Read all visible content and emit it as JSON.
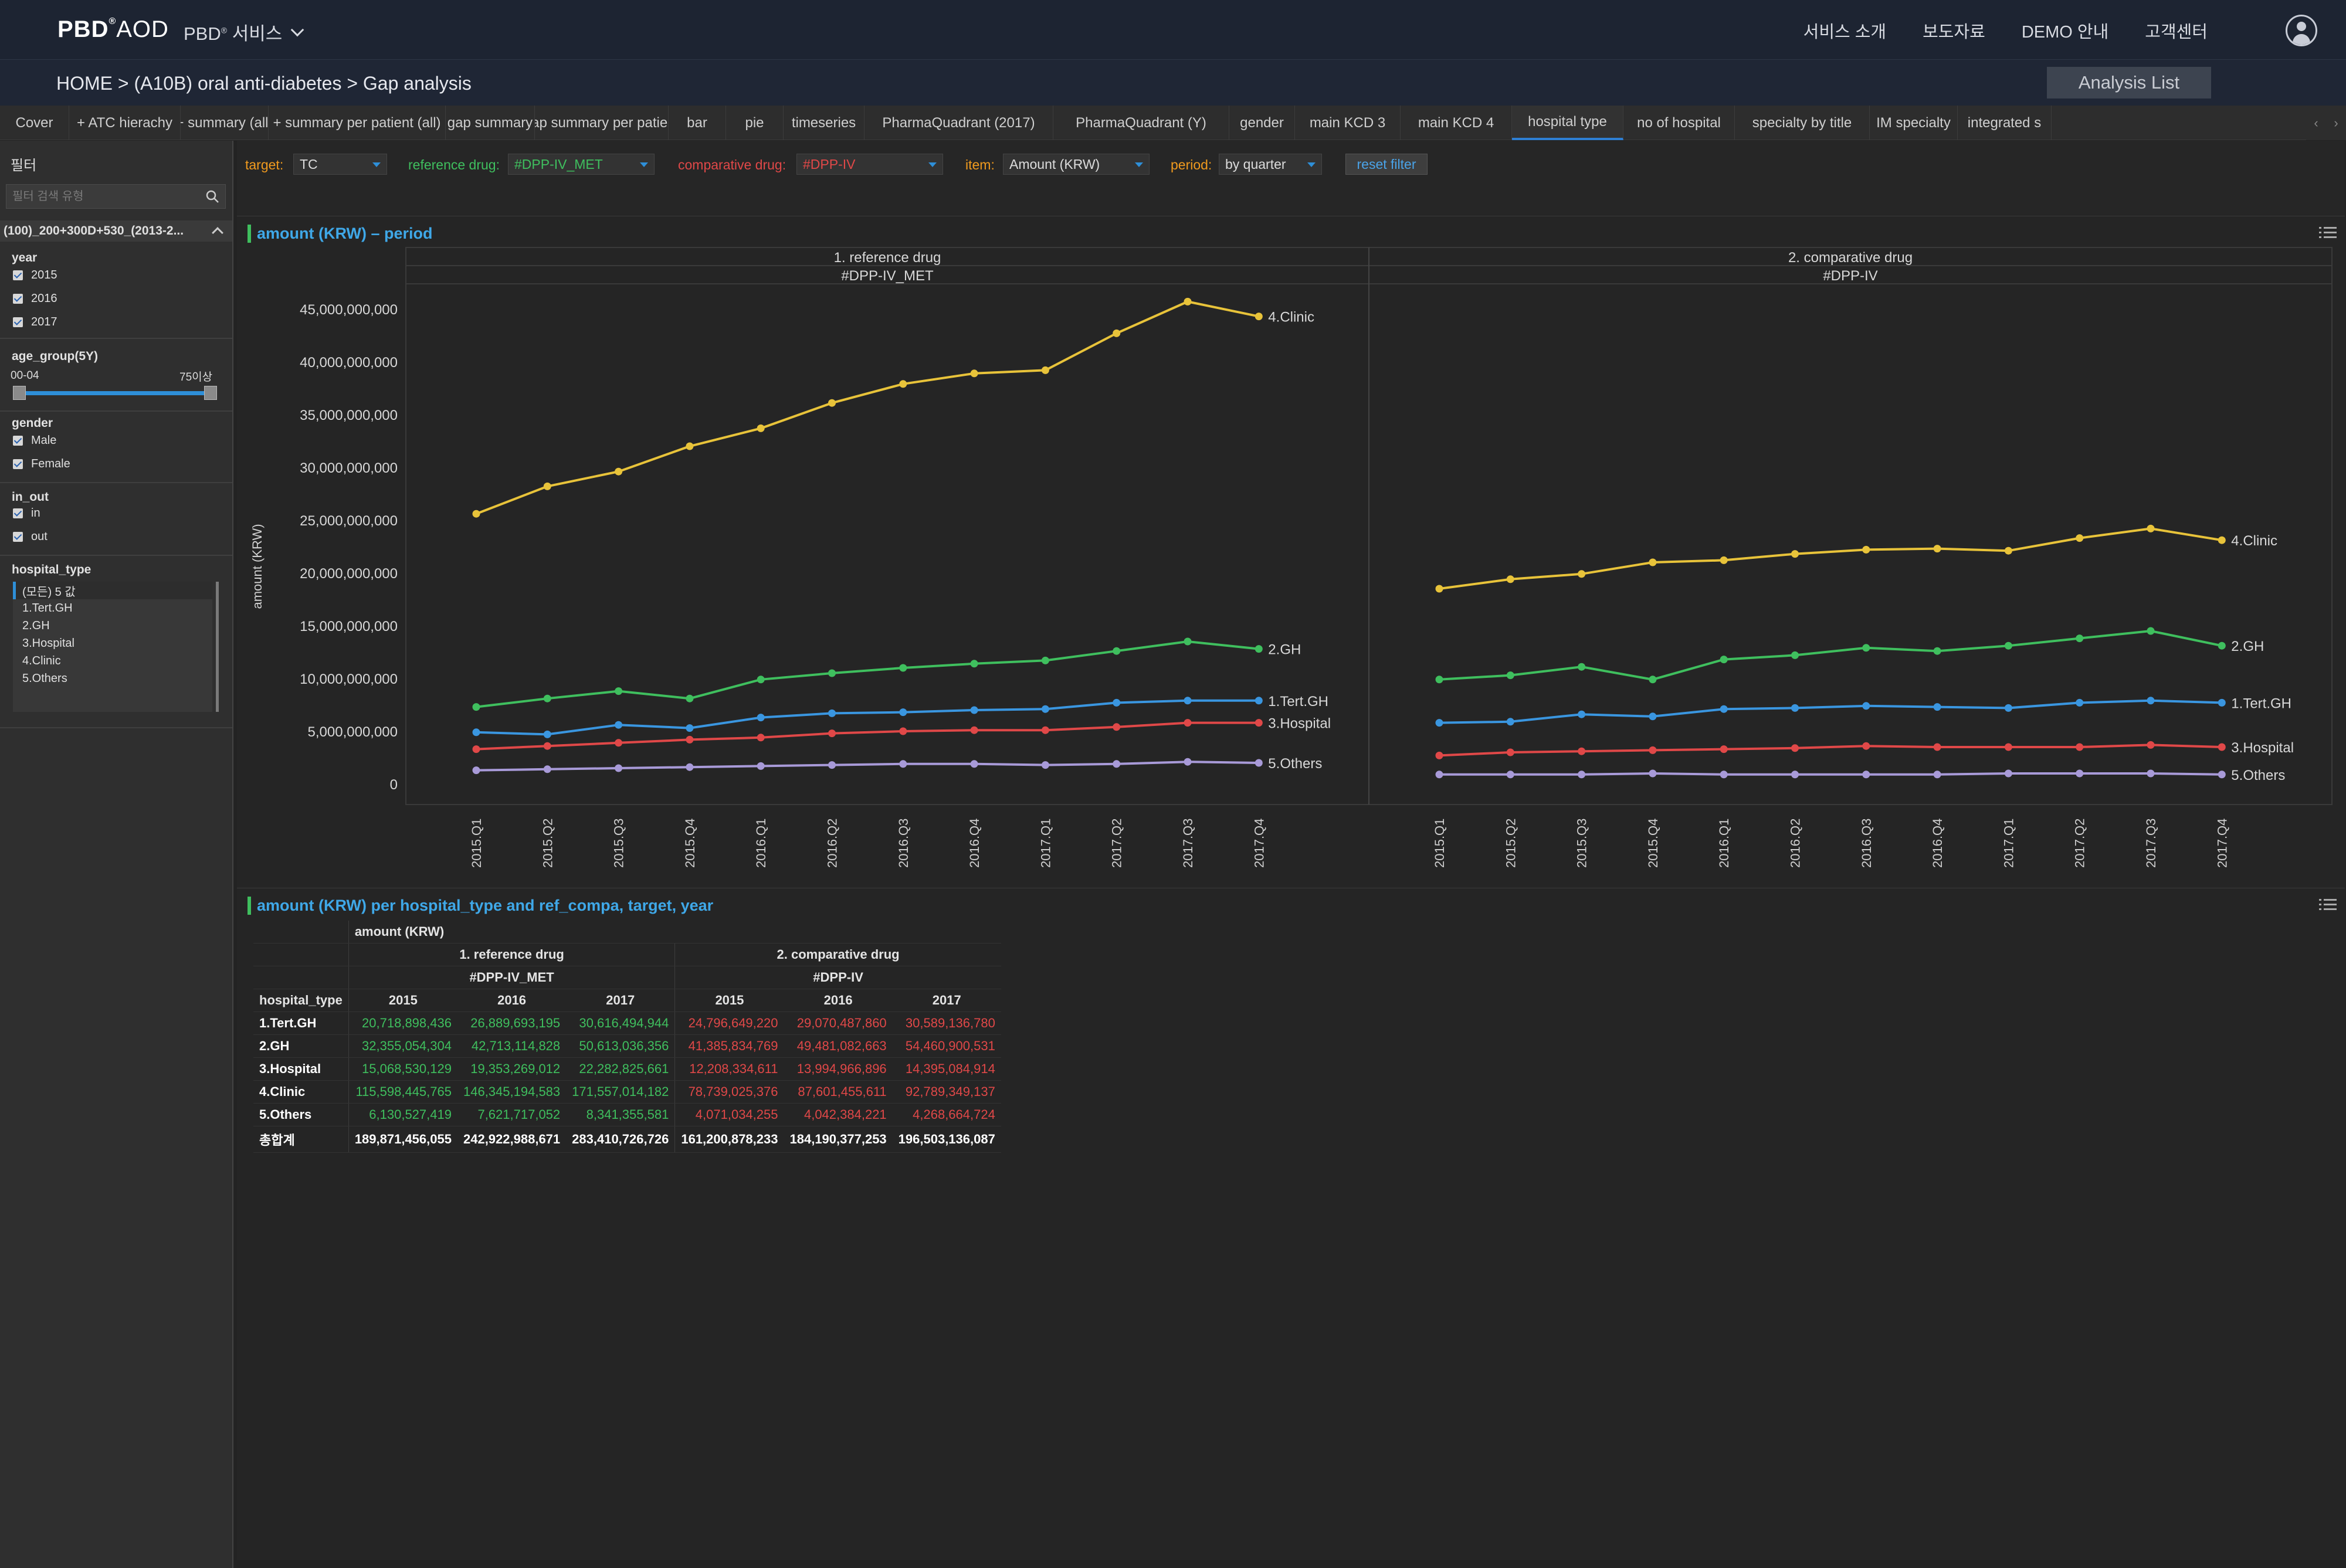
{
  "header": {
    "logo": "PBD",
    "logo_sup": "®",
    "logo_suffix": "AOD",
    "service_menu": "PBD",
    "service_sup": "®",
    "service_suffix": "서비스",
    "nav": [
      "서비스 소개",
      "보도자료",
      "DEMO 안내",
      "고객센터"
    ]
  },
  "breadcrumb": "HOME > (A10B) oral anti-diabetes > Gap analysis",
  "analysis_list": "Analysis List",
  "tabs": [
    {
      "label": "Cover",
      "active": false
    },
    {
      "label": "+ ATC hierachy",
      "active": false
    },
    {
      "label": "+ summary (all)",
      "active": false
    },
    {
      "label": "+ summary per patient (all)",
      "active": false
    },
    {
      "label": "gap summary",
      "active": false
    },
    {
      "label": "gap summary per patient",
      "active": false
    },
    {
      "label": "bar",
      "active": false
    },
    {
      "label": "pie",
      "active": false
    },
    {
      "label": "timeseries",
      "active": false
    },
    {
      "label": "PharmaQuadrant (2017)",
      "active": false
    },
    {
      "label": "PharmaQuadrant (Y)",
      "active": false
    },
    {
      "label": "gender",
      "active": false
    },
    {
      "label": "main KCD 3",
      "active": false
    },
    {
      "label": "main KCD 4",
      "active": false
    },
    {
      "label": "hospital type",
      "active": true
    },
    {
      "label": "no of hospital",
      "active": false
    },
    {
      "label": "specialty by title",
      "active": false
    },
    {
      "label": "IM specialty",
      "active": false
    },
    {
      "label": "integrated s",
      "active": false
    }
  ],
  "tab_arrows": [
    "‹",
    "›"
  ],
  "sidebar": {
    "title": "필터",
    "search_placeholder": "필터 검색 유형",
    "dataset": "(100)_200+300D+530_(2013-2...",
    "year": {
      "title": "year",
      "items": [
        "2015",
        "2016",
        "2017"
      ]
    },
    "age_group": {
      "title": "age_group(5Y)",
      "min": "00-04",
      "max": "75이상"
    },
    "gender": {
      "title": "gender",
      "items": [
        "Male",
        "Female"
      ]
    },
    "in_out": {
      "title": "in_out",
      "items": [
        "in",
        "out"
      ]
    },
    "hospital_type": {
      "title": "hospital_type",
      "items": [
        "(모든) 5 값",
        "1.Tert.GH",
        "2.GH",
        "3.Hospital",
        "4.Clinic",
        "5.Others"
      ]
    }
  },
  "filters": {
    "target_label": "target:",
    "target_value": "TC",
    "reference_label": "reference drug:",
    "reference_value": "#DPP-IV_MET",
    "comparative_label": "comparative drug:",
    "comparative_value": "#DPP-IV",
    "item_label": "item:",
    "item_value": "Amount (KRW)",
    "period_label": "period:",
    "period_value": "by quarter",
    "reset": "reset filter"
  },
  "colors": {
    "1.Tert.GH": "#3a96e0",
    "2.GH": "#3fbf5e",
    "3.Hospital": "#e04848",
    "4.Clinic": "#e8c33a",
    "5.Others": "#a89ad8"
  },
  "chart_panel_title": "amount (KRW) – period",
  "chart_data": {
    "type": "line",
    "ylabel": "amount (KRW)",
    "ylim": [
      0,
      45000000000
    ],
    "yticks": [
      "45,000,000,000",
      "40,000,000,000",
      "35,000,000,000",
      "30,000,000,000",
      "25,000,000,000",
      "20,000,000,000",
      "15,000,000,000",
      "10,000,000,000",
      "5,000,000,000",
      "0"
    ],
    "ytick_values": [
      45000000000,
      40000000000,
      35000000000,
      30000000000,
      25000000000,
      20000000000,
      15000000000,
      10000000000,
      5000000000,
      0
    ],
    "categories": [
      "2015.Q1",
      "2015.Q2",
      "2015.Q3",
      "2015.Q4",
      "2016.Q1",
      "2016.Q2",
      "2016.Q3",
      "2016.Q4",
      "2017.Q1",
      "2017.Q2",
      "2017.Q3",
      "2017.Q4"
    ],
    "grid": false,
    "panels": [
      {
        "title": "1. reference drug",
        "subtitle": "#DPP-IV_MET",
        "series": [
          {
            "name": "4.Clinic",
            "values": [
              25600000000,
              28200000000,
              29600000000,
              32000000000,
              33700000000,
              36100000000,
              37900000000,
              38900000000,
              39200000000,
              42700000000,
              45700000000,
              44300000000
            ]
          },
          {
            "name": "2.GH",
            "values": [
              7300000000,
              8100000000,
              8800000000,
              8100000000,
              9900000000,
              10500000000,
              11000000000,
              11400000000,
              11700000000,
              12600000000,
              13500000000,
              12800000000
            ]
          },
          {
            "name": "1.Tert.GH",
            "values": [
              4900000000,
              4700000000,
              5600000000,
              5300000000,
              6300000000,
              6700000000,
              6800000000,
              7000000000,
              7100000000,
              7700000000,
              7900000000,
              7900000000
            ]
          },
          {
            "name": "3.Hospital",
            "values": [
              3300000000,
              3600000000,
              3900000000,
              4200000000,
              4400000000,
              4800000000,
              5000000000,
              5100000000,
              5100000000,
              5400000000,
              5800000000,
              5800000000
            ]
          },
          {
            "name": "5.Others",
            "values": [
              1300000000,
              1400000000,
              1500000000,
              1600000000,
              1700000000,
              1800000000,
              1900000000,
              1900000000,
              1800000000,
              1900000000,
              2100000000,
              2000000000
            ]
          }
        ]
      },
      {
        "title": "2. comparative drug",
        "subtitle": "#DPP-IV",
        "series": [
          {
            "name": "4.Clinic",
            "values": [
              18500000000,
              19400000000,
              19900000000,
              21000000000,
              21200000000,
              21800000000,
              22200000000,
              22300000000,
              22100000000,
              23300000000,
              24200000000,
              23100000000
            ]
          },
          {
            "name": "2.GH",
            "values": [
              9900000000,
              10300000000,
              11100000000,
              9900000000,
              11800000000,
              12200000000,
              12900000000,
              12600000000,
              13100000000,
              13800000000,
              14500000000,
              13100000000
            ]
          },
          {
            "name": "1.Tert.GH",
            "values": [
              5800000000,
              5900000000,
              6600000000,
              6400000000,
              7100000000,
              7200000000,
              7400000000,
              7300000000,
              7200000000,
              7700000000,
              7900000000,
              7700000000
            ]
          },
          {
            "name": "3.Hospital",
            "values": [
              2700000000,
              3000000000,
              3100000000,
              3200000000,
              3300000000,
              3400000000,
              3600000000,
              3500000000,
              3500000000,
              3500000000,
              3700000000,
              3500000000
            ]
          },
          {
            "name": "5.Others",
            "values": [
              900000000,
              900000000,
              900000000,
              1000000000,
              900000000,
              900000000,
              900000000,
              900000000,
              1000000000,
              1000000000,
              1000000000,
              900000000
            ]
          }
        ]
      }
    ]
  },
  "table_panel_title": "amount (KRW) per hospital_type and ref_compa, target, year",
  "table": {
    "measure": "amount (KRW)",
    "group1": "1. reference drug",
    "group1_sub": "#DPP-IV_MET",
    "group2": "2. comparative drug",
    "group2_sub": "#DPP-IV",
    "row_header": "hospital_type",
    "years": [
      "2015",
      "2016",
      "2017",
      "2015",
      "2016",
      "2017"
    ],
    "rows": [
      {
        "label": "1.Tert.GH",
        "values": [
          "20,718,898,436",
          "26,889,693,195",
          "30,616,494,944",
          "24,796,649,220",
          "29,070,487,860",
          "30,589,136,780"
        ]
      },
      {
        "label": "2.GH",
        "values": [
          "32,355,054,304",
          "42,713,114,828",
          "50,613,036,356",
          "41,385,834,769",
          "49,481,082,663",
          "54,460,900,531"
        ]
      },
      {
        "label": "3.Hospital",
        "values": [
          "15,068,530,129",
          "19,353,269,012",
          "22,282,825,661",
          "12,208,334,611",
          "13,994,966,896",
          "14,395,084,914"
        ]
      },
      {
        "label": "4.Clinic",
        "values": [
          "115,598,445,765",
          "146,345,194,583",
          "171,557,014,182",
          "78,739,025,376",
          "87,601,455,611",
          "92,789,349,137"
        ]
      },
      {
        "label": "5.Others",
        "values": [
          "6,130,527,419",
          "7,621,717,052",
          "8,341,355,581",
          "4,071,034,255",
          "4,042,384,221",
          "4,268,664,724"
        ]
      }
    ],
    "total": {
      "label": "총합계",
      "values": [
        "189,871,456,055",
        "242,922,988,671",
        "283,410,726,726",
        "161,200,878,233",
        "184,190,377,253",
        "196,503,136,087"
      ]
    }
  }
}
